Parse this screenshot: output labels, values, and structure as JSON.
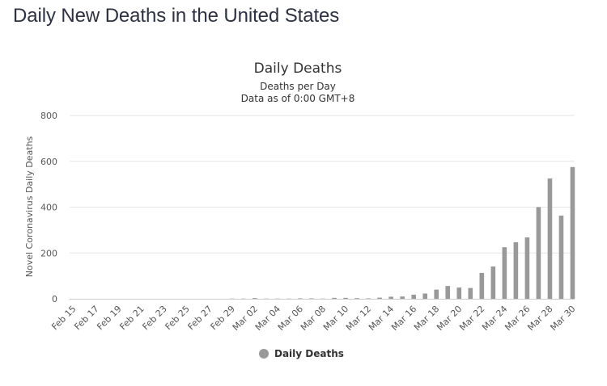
{
  "page": {
    "heading": "Daily New Deaths in the United States"
  },
  "chart_data": {
    "type": "bar",
    "title": "Daily Deaths",
    "subtitle_lines": [
      "Deaths per Day",
      "Data as of 0:00 GMT+8"
    ],
    "xlabel": "",
    "ylabel": "Novel Coronavirus Daily Deaths",
    "ylim": [
      0,
      800
    ],
    "yticks": [
      0,
      200,
      400,
      600,
      800
    ],
    "grid": true,
    "legend_position": "bottom-center",
    "bar_color": "#999999",
    "categories": [
      "Feb 15",
      "Feb 16",
      "Feb 17",
      "Feb 18",
      "Feb 19",
      "Feb 20",
      "Feb 21",
      "Feb 22",
      "Feb 23",
      "Feb 24",
      "Feb 25",
      "Feb 26",
      "Feb 27",
      "Feb 28",
      "Feb 29",
      "Mar 01",
      "Mar 02",
      "Mar 03",
      "Mar 04",
      "Mar 05",
      "Mar 06",
      "Mar 07",
      "Mar 08",
      "Mar 09",
      "Mar 10",
      "Mar 11",
      "Mar 12",
      "Mar 13",
      "Mar 14",
      "Mar 15",
      "Mar 16",
      "Mar 17",
      "Mar 18",
      "Mar 19",
      "Mar 20",
      "Mar 21",
      "Mar 22",
      "Mar 23",
      "Mar 24",
      "Mar 25",
      "Mar 26",
      "Mar 27",
      "Mar 28",
      "Mar 29",
      "Mar 30"
    ],
    "x_tick_labels": [
      "Feb 15",
      "Feb 17",
      "Feb 19",
      "Feb 21",
      "Feb 23",
      "Feb 25",
      "Feb 27",
      "Feb 29",
      "Mar 02",
      "Mar 04",
      "Mar 06",
      "Mar 08",
      "Mar 10",
      "Mar 12",
      "Mar 14",
      "Mar 16",
      "Mar 18",
      "Mar 20",
      "Mar 22",
      "Mar 24",
      "Mar 26",
      "Mar 28",
      "Mar 30"
    ],
    "series": [
      {
        "name": "Daily Deaths",
        "values": [
          0,
          0,
          0,
          0,
          0,
          0,
          0,
          0,
          0,
          0,
          0,
          0,
          0,
          0,
          1,
          1,
          3,
          1,
          1,
          1,
          2,
          2,
          1,
          4,
          4,
          3,
          2,
          5,
          9,
          10,
          18,
          23,
          40,
          56,
          49,
          47,
          113,
          141,
          225,
          247,
          268,
          400,
          525,
          363,
          575
        ]
      }
    ]
  }
}
